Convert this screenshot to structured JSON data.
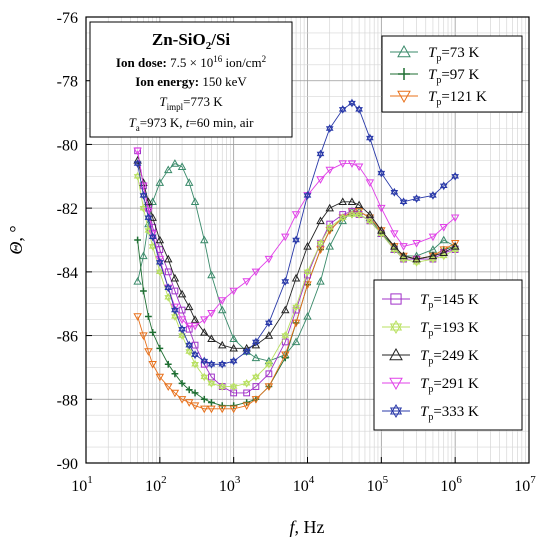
{
  "chart_data": {
    "type": "scatter",
    "xlabel": "f, Hz",
    "ylabel": "Θ, °",
    "x_scale": "log",
    "xlim": [
      10,
      10000000
    ],
    "ylim": [
      -90,
      -76
    ],
    "x_ticks": [
      {
        "value": 10,
        "label": "10",
        "exp": "1"
      },
      {
        "value": 100,
        "label": "10",
        "exp": "2"
      },
      {
        "value": 1000,
        "label": "10",
        "exp": "3"
      },
      {
        "value": 10000,
        "label": "10",
        "exp": "4"
      },
      {
        "value": 100000,
        "label": "10",
        "exp": "5"
      },
      {
        "value": 1000000,
        "label": "10",
        "exp": "6"
      },
      {
        "value": 10000000,
        "label": "10",
        "exp": "7"
      }
    ],
    "y_ticks": [
      -90,
      -88,
      -86,
      -84,
      -82,
      -80,
      -78,
      -76
    ],
    "y_tick_labels": [
      "-90",
      "-88",
      "-86",
      "-84",
      "-82",
      "-80",
      "-78",
      "-76"
    ],
    "grid": true,
    "info_box": {
      "title_main": "Zn-SiO",
      "title_sub": "2",
      "title_tail": "/Si",
      "dose_label": "Ion dose:",
      "dose_value": " 7.5 × 10",
      "dose_exp": "16",
      "dose_unit": " ion/cm",
      "dose_unit_exp": "2",
      "energy_label": "Ion energy:",
      "energy_value": " 150 keV",
      "timpl_sym": "T",
      "timpl_sub": "impl",
      "timpl_value": "=773 K",
      "ta_sym": "T",
      "ta_sub": "a",
      "ta_value": "=973 K, ",
      "t_sym": "t",
      "t_value": "=60 min, air"
    },
    "legend_top": {
      "placement": "top-right",
      "series": [
        0,
        1,
        2
      ]
    },
    "legend_bottom": {
      "placement": "bottom-right",
      "series": [
        3,
        4,
        5,
        6,
        7
      ]
    },
    "series": [
      {
        "name_sym": "T",
        "name_sub": "p",
        "name_value": "=73 K",
        "color": "#3a8a6a",
        "marker": "triangle",
        "x": [
          50,
          60,
          70,
          80,
          100,
          130,
          160,
          200,
          250,
          300,
          400,
          500,
          700,
          1000,
          1500,
          2000,
          3000,
          5000,
          7000,
          10000,
          15000,
          20000,
          30000,
          40000,
          50000,
          70000,
          100000,
          150000,
          200000,
          300000,
          500000,
          700000,
          1000000
        ],
        "y": [
          -84.3,
          -83.5,
          -82.5,
          -81.8,
          -81.2,
          -80.8,
          -80.6,
          -80.7,
          -81.2,
          -81.8,
          -83.0,
          -84.1,
          -85.2,
          -86.1,
          -86.5,
          -86.7,
          -86.8,
          -86.6,
          -86.2,
          -85.4,
          -84.3,
          -83.2,
          -82.4,
          -82.1,
          -82.1,
          -82.3,
          -82.8,
          -83.3,
          -83.5,
          -83.5,
          -83.3,
          -83.0,
          -83.2
        ]
      },
      {
        "name_sym": "T",
        "name_sub": "p",
        "name_value": "=97 K",
        "color": "#1e6e32",
        "marker": "plus",
        "x": [
          50,
          60,
          70,
          80,
          100,
          130,
          160,
          200,
          250,
          300,
          400,
          500,
          700,
          1000,
          1500,
          2000,
          3000,
          5000,
          7000,
          10000,
          15000,
          20000,
          30000,
          40000,
          50000,
          70000,
          100000,
          150000,
          200000,
          300000,
          500000,
          700000,
          1000000
        ],
        "y": [
          -83.0,
          -84.6,
          -85.4,
          -85.9,
          -86.4,
          -86.9,
          -87.2,
          -87.5,
          -87.7,
          -87.8,
          -88.0,
          -88.1,
          -88.2,
          -88.2,
          -88.1,
          -88.0,
          -87.6,
          -86.7,
          -85.6,
          -84.4,
          -83.3,
          -82.7,
          -82.3,
          -82.2,
          -82.2,
          -82.4,
          -82.8,
          -83.2,
          -83.5,
          -83.6,
          -83.5,
          -83.3,
          -83.2
        ]
      },
      {
        "name_sym": "T",
        "name_sub": "p",
        "name_value": "=121 K",
        "color": "#e8701a",
        "marker": "triangle-down",
        "x": [
          50,
          60,
          70,
          80,
          100,
          130,
          160,
          200,
          250,
          300,
          400,
          500,
          700,
          1000,
          1500,
          2000,
          3000,
          5000,
          7000,
          10000,
          15000,
          20000,
          30000,
          40000,
          50000,
          70000,
          100000,
          150000,
          200000,
          300000,
          500000,
          700000,
          1000000
        ],
        "y": [
          -85.4,
          -86.0,
          -86.5,
          -86.9,
          -87.3,
          -87.6,
          -87.8,
          -88.0,
          -88.1,
          -88.2,
          -88.3,
          -88.3,
          -88.3,
          -88.3,
          -88.2,
          -88.0,
          -87.6,
          -86.6,
          -85.6,
          -84.4,
          -83.3,
          -82.7,
          -82.3,
          -82.1,
          -82.1,
          -82.3,
          -82.7,
          -83.2,
          -83.5,
          -83.6,
          -83.5,
          -83.3,
          -83.1
        ]
      },
      {
        "name_sym": "T",
        "name_sub": "p",
        "name_value": "=145 K",
        "color": "#a030c8",
        "marker": "square",
        "x": [
          50,
          60,
          70,
          80,
          100,
          130,
          160,
          200,
          250,
          300,
          400,
          500,
          700,
          1000,
          1500,
          2000,
          3000,
          5000,
          7000,
          10000,
          15000,
          20000,
          30000,
          40000,
          50000,
          70000,
          100000,
          150000,
          200000,
          300000,
          500000,
          700000,
          1000000
        ],
        "y": [
          -80.2,
          -81.3,
          -82.0,
          -82.6,
          -83.3,
          -84.0,
          -84.6,
          -85.2,
          -85.8,
          -86.3,
          -86.9,
          -87.3,
          -87.6,
          -87.8,
          -87.8,
          -87.6,
          -87.2,
          -86.2,
          -85.2,
          -84.1,
          -83.1,
          -82.5,
          -82.2,
          -82.1,
          -82.2,
          -82.4,
          -82.8,
          -83.3,
          -83.6,
          -83.6,
          -83.6,
          -83.4,
          -83.3
        ]
      },
      {
        "name_sym": "T",
        "name_sub": "p",
        "name_value": "=193 K",
        "color": "#b8e060",
        "marker": "star",
        "x": [
          50,
          60,
          70,
          80,
          100,
          130,
          160,
          200,
          250,
          300,
          400,
          500,
          700,
          1000,
          1500,
          2000,
          3000,
          5000,
          7000,
          10000,
          15000,
          20000,
          30000,
          40000,
          50000,
          70000,
          100000,
          150000,
          200000,
          300000,
          500000,
          700000,
          1000000
        ],
        "y": [
          -81.0,
          -82.0,
          -82.7,
          -83.2,
          -84.0,
          -84.8,
          -85.4,
          -86.0,
          -86.5,
          -86.9,
          -87.3,
          -87.5,
          -87.6,
          -87.6,
          -87.5,
          -87.3,
          -86.9,
          -86.0,
          -85.1,
          -84.0,
          -83.1,
          -82.6,
          -82.3,
          -82.2,
          -82.2,
          -82.4,
          -82.8,
          -83.3,
          -83.6,
          -83.7,
          -83.6,
          -83.5,
          -83.3
        ]
      },
      {
        "name_sym": "T",
        "name_sub": "p",
        "name_value": "=249 K",
        "color": "#222222",
        "marker": "triangle",
        "x": [
          50,
          60,
          70,
          80,
          100,
          130,
          160,
          200,
          250,
          300,
          400,
          500,
          700,
          1000,
          1500,
          2000,
          3000,
          5000,
          7000,
          10000,
          15000,
          20000,
          30000,
          40000,
          50000,
          70000,
          100000,
          150000,
          200000,
          300000,
          500000,
          700000,
          1000000
        ],
        "y": [
          -80.5,
          -81.2,
          -81.8,
          -82.3,
          -83.0,
          -83.6,
          -84.2,
          -84.7,
          -85.1,
          -85.5,
          -85.9,
          -86.1,
          -86.3,
          -86.4,
          -86.4,
          -86.3,
          -86.0,
          -85.2,
          -84.2,
          -83.2,
          -82.4,
          -82.0,
          -81.8,
          -81.8,
          -81.9,
          -82.2,
          -82.7,
          -83.2,
          -83.5,
          -83.6,
          -83.5,
          -83.4,
          -83.2
        ]
      },
      {
        "name_sym": "T",
        "name_sub": "p",
        "name_value": "=291 K",
        "color": "#e040e8",
        "marker": "triangle-down",
        "x": [
          50,
          60,
          70,
          80,
          100,
          130,
          160,
          200,
          250,
          300,
          400,
          500,
          700,
          1000,
          1500,
          2000,
          3000,
          5000,
          7000,
          10000,
          15000,
          20000,
          30000,
          40000,
          50000,
          70000,
          100000,
          150000,
          200000,
          300000,
          500000,
          700000,
          1000000
        ],
        "y": [
          -80.2,
          -81.3,
          -82.1,
          -82.8,
          -83.6,
          -84.5,
          -85.1,
          -85.5,
          -85.7,
          -85.7,
          -85.5,
          -85.3,
          -84.9,
          -84.6,
          -84.3,
          -84.0,
          -83.6,
          -82.9,
          -82.2,
          -81.6,
          -81.1,
          -80.8,
          -80.6,
          -80.6,
          -80.7,
          -81.2,
          -82.0,
          -82.8,
          -83.2,
          -83.1,
          -82.9,
          -82.6,
          -82.3
        ]
      },
      {
        "name_sym": "T",
        "name_sub": "p",
        "name_value": "=333 K",
        "color": "#2838a8",
        "marker": "star",
        "x": [
          50,
          60,
          70,
          80,
          100,
          130,
          160,
          200,
          250,
          300,
          400,
          500,
          700,
          1000,
          1500,
          2000,
          3000,
          5000,
          7000,
          10000,
          15000,
          20000,
          30000,
          40000,
          50000,
          70000,
          100000,
          150000,
          200000,
          300000,
          500000,
          700000,
          1000000
        ],
        "y": [
          -80.6,
          -81.6,
          -82.3,
          -82.9,
          -83.7,
          -84.5,
          -85.2,
          -85.8,
          -86.3,
          -86.6,
          -86.8,
          -86.9,
          -86.9,
          -86.8,
          -86.5,
          -86.2,
          -85.6,
          -84.3,
          -83.0,
          -81.6,
          -80.3,
          -79.5,
          -78.9,
          -78.7,
          -78.9,
          -79.8,
          -80.9,
          -81.5,
          -81.8,
          -81.7,
          -81.6,
          -81.3,
          -81.0
        ]
      }
    ]
  }
}
